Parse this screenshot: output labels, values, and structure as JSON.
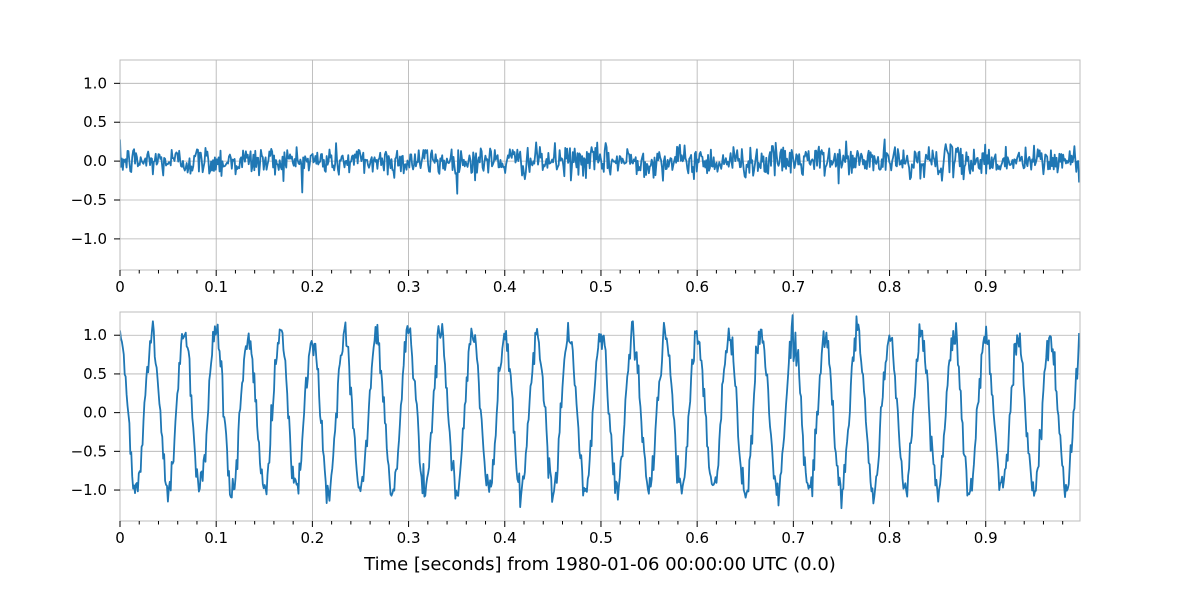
{
  "colors": {
    "series": "#1f77b4",
    "grid": "#b0b0b0",
    "frame": "#bcbcbc"
  },
  "chart_data": [
    {
      "type": "line",
      "title": "",
      "xlabel": "",
      "ylabel": "",
      "xlim": [
        0,
        0.998
      ],
      "ylim": [
        -1.4,
        1.3
      ],
      "xticks": [
        0,
        0.1,
        0.2,
        0.3,
        0.4,
        0.5,
        0.6,
        0.7,
        0.8,
        0.9
      ],
      "xtick_labels": [
        "0",
        "0.1",
        "0.2",
        "0.3",
        "0.4",
        "0.5",
        "0.6",
        "0.7",
        "0.8",
        "0.9"
      ],
      "yticks": [
        1.0,
        0.5,
        0.0,
        -0.5,
        -1.0
      ],
      "ytick_labels": [
        "1.0",
        "0.5",
        "0.0",
        "−0.5",
        "−1.0"
      ],
      "grid": true,
      "signal": {
        "kind": "noise",
        "noise_std": 0.1,
        "sample_rate_hz": 1024,
        "duration_s": 1.0
      }
    },
    {
      "type": "line",
      "title": "",
      "xlabel": "Time [seconds] from 1980-01-06 00:00:00 UTC (0.0)",
      "ylabel": "",
      "xlim": [
        0,
        0.998
      ],
      "ylim": [
        -1.4,
        1.3
      ],
      "xticks": [
        0,
        0.1,
        0.2,
        0.3,
        0.4,
        0.5,
        0.6,
        0.7,
        0.8,
        0.9
      ],
      "xtick_labels": [
        "0",
        "0.1",
        "0.2",
        "0.3",
        "0.4",
        "0.5",
        "0.6",
        "0.7",
        "0.8",
        "0.9"
      ],
      "yticks": [
        1.0,
        0.5,
        0.0,
        -0.5,
        -1.0
      ],
      "ytick_labels": [
        "1.0",
        "0.5",
        "0.0",
        "−0.5",
        "−1.0"
      ],
      "grid": true,
      "signal": {
        "kind": "sine_plus_noise",
        "amplitude": 1.0,
        "frequency_hz": 30,
        "phase": 1.5708,
        "noise_std": 0.1,
        "sample_rate_hz": 1024,
        "duration_s": 1.0
      }
    }
  ]
}
